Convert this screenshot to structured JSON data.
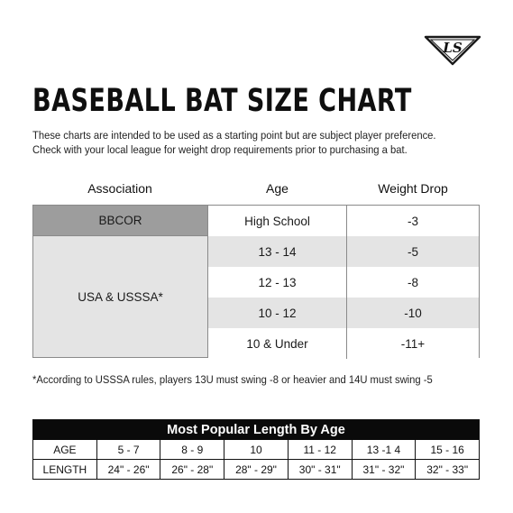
{
  "brand": {
    "logo_text": "LS"
  },
  "title": "BASEBALL BAT SIZE CHART",
  "intro": {
    "line1": "These charts are intended to be used as a starting point but are subject  player preference.",
    "line2": "Check with your local league for weight drop requirements prior to purchasing a bat."
  },
  "weight_table": {
    "headers": {
      "association": "Association",
      "age": "Age",
      "weight_drop": "Weight Drop"
    },
    "groups": [
      {
        "association": "BBCOR",
        "rows": [
          {
            "age": "High School",
            "drop": "-3"
          }
        ]
      },
      {
        "association": "USA & USSSA*",
        "rows": [
          {
            "age": "13 - 14",
            "drop": "-5"
          },
          {
            "age": "12 - 13",
            "drop": "-8"
          },
          {
            "age": "10 - 12",
            "drop": "-10"
          },
          {
            "age": "10 & Under",
            "drop": "-11+"
          }
        ]
      }
    ]
  },
  "footnote": "*According to USSSA rules, players 13U must swing -8 or heavier  and 14U must swing -5",
  "length_table": {
    "title": "Most Popular Length By Age",
    "age_label": "AGE",
    "length_label": "LENGTH",
    "ages": [
      "5 - 7",
      "8 - 9",
      "10",
      "11 - 12",
      "13 -1 4",
      "15 - 16"
    ],
    "lengths": [
      "24\" - 26\"",
      "26\" - 28\"",
      "28\" - 29\"",
      "30\" - 31\"",
      "31\" - 32\"",
      "32\" - 33\""
    ]
  },
  "colors": {
    "bbcor_fill": "#9d9d9d",
    "shade_fill": "#e4e4e4",
    "title_bar": "#0a0a0a"
  }
}
